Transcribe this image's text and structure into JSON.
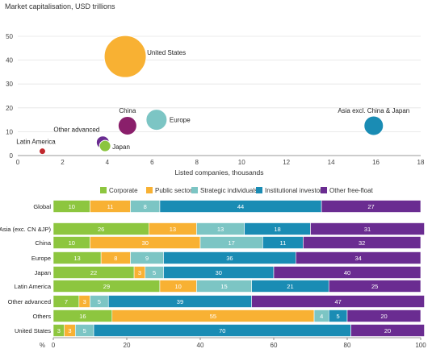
{
  "chart_data": [
    {
      "type": "scatter",
      "title": "Market capitalisation, USD trillions",
      "xlabel": "Listed companies, thousands",
      "ylabel": "",
      "xlim": [
        0,
        18
      ],
      "ylim": [
        0,
        50
      ],
      "xticks": [
        0,
        2,
        4,
        6,
        8,
        10,
        12,
        14,
        16,
        18
      ],
      "yticks": [
        0,
        10,
        20,
        30,
        40,
        50
      ],
      "grid": "horizontal",
      "points": [
        {
          "label": "United States",
          "x": 4.8,
          "y": 41.5,
          "color": "#f8b133"
        },
        {
          "label": "Europe",
          "x": 6.2,
          "y": 15,
          "color": "#7cc5c4"
        },
        {
          "label": "China",
          "x": 4.9,
          "y": 12.5,
          "color": "#8a1f6b"
        },
        {
          "label": "Asia excl. China & Japan",
          "x": 15.9,
          "y": 12.5,
          "color": "#1a8cb4"
        },
        {
          "label": "Other advanced",
          "x": 3.8,
          "y": 5.5,
          "color": "#6a2c91"
        },
        {
          "label": "Japan",
          "x": 3.9,
          "y": 4,
          "color": "#8bc53f"
        },
        {
          "label": "Latin America",
          "x": 1.1,
          "y": 1.8,
          "color": "#c0282d"
        }
      ]
    },
    {
      "type": "bar",
      "orientation": "horizontal",
      "stacked": true,
      "xlim": [
        0,
        100
      ],
      "xticks": [
        0,
        20,
        40,
        60,
        80,
        100
      ],
      "xlabel": "%",
      "legend_position": "top",
      "categories": [
        "Global",
        "Asia (exc. CN &JP)",
        "China",
        "Europe",
        "Japan",
        "Latin America",
        "Other advanced",
        "Others",
        "United States"
      ],
      "series": [
        {
          "name": "Corporate",
          "color": "#8dc63f",
          "values": [
            10,
            26,
            10,
            13,
            22,
            29,
            7,
            16,
            3
          ]
        },
        {
          "name": "Public sector",
          "color": "#f8b133",
          "values": [
            11,
            13,
            30,
            8,
            3,
            10,
            3,
            55,
            3
          ]
        },
        {
          "name": "Strategic individuals",
          "color": "#7cc5c4",
          "values": [
            8,
            13,
            17,
            9,
            5,
            15,
            5,
            4,
            5
          ]
        },
        {
          "name": "Institutional investors",
          "color": "#1a8cb4",
          "values": [
            44,
            18,
            11,
            36,
            30,
            21,
            39,
            5,
            70
          ]
        },
        {
          "name": "Other free-float",
          "color": "#6a2c91",
          "values": [
            27,
            31,
            32,
            34,
            40,
            25,
            47,
            20,
            20
          ]
        }
      ]
    }
  ]
}
